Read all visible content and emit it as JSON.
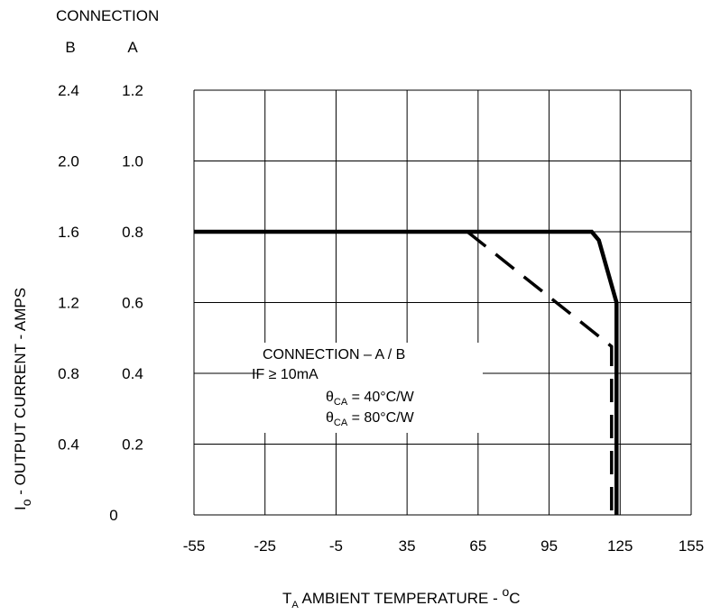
{
  "chart_data": {
    "type": "line",
    "header": {
      "title": "CONNECTION",
      "col_b": "B",
      "col_a": "A"
    },
    "xlabel": {
      "prefix": "T",
      "sub": "A",
      "text": " AMBIENT TEMPERATURE -  ",
      "sup": "o",
      "unit": "C"
    },
    "ylabel": {
      "prefix": "I",
      "sub": "o",
      "text": " - OUTPUT CURRENT - AMPS"
    },
    "x_ticks": [
      "-55",
      "-25",
      "-5",
      "35",
      "65",
      "95",
      "125",
      "155"
    ],
    "y_ticks_a": [
      "0",
      "0.2",
      "0.4",
      "0.6",
      "0.8",
      "1.0",
      "1.2"
    ],
    "y_ticks_b": [
      "",
      "0.4",
      "0.8",
      "1.2",
      "1.6",
      "2.0",
      "2.4"
    ],
    "xlim": [
      0,
      7
    ],
    "ylim": [
      0,
      6
    ],
    "grid": true,
    "note": "x axis tick labels are non-uniform; x values are given in tick-index units (0 = -55, 1 = -25, 2 = -5, 3 = 35, 4 = 65, 5 = 95, 6 = 125, 7 = 155); y values in tick-index units of 0.2 A on connection A",
    "series": [
      {
        "style": "solid",
        "points": [
          [
            0,
            4.0
          ],
          [
            5.6,
            4.0
          ],
          [
            5.7,
            3.88
          ],
          [
            5.95,
            3.0
          ],
          [
            5.95,
            0
          ]
        ]
      },
      {
        "style": "dashed",
        "points": [
          [
            3.85,
            4.0
          ],
          [
            5.88,
            2.38
          ],
          [
            5.88,
            0
          ]
        ]
      }
    ],
    "legend": {
      "lines": [
        {
          "text": "CONNECTION – A / B"
        },
        {
          "text": "IF ≥ 10mA"
        },
        {
          "theta": "θ",
          "sub": "CA",
          "text": " = 40°C/W"
        },
        {
          "theta": "θ",
          "sub": "CA",
          "text": " = 80°C/W"
        }
      ]
    }
  }
}
